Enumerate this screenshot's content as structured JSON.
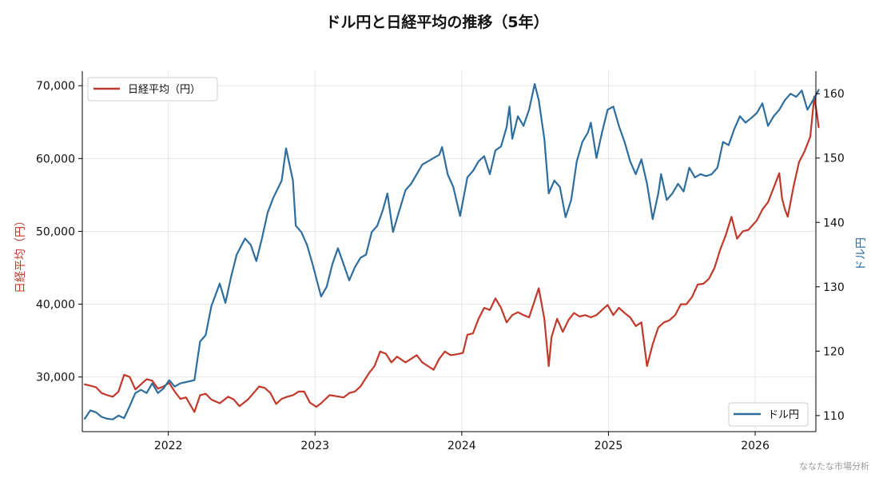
{
  "chart_data": {
    "type": "line",
    "title": "ドル円と日経平均の推移（5年）",
    "xlabel": "",
    "x_ticks": [
      "2022",
      "2023",
      "2024",
      "2025",
      "2026"
    ],
    "x_range": [
      "2021-06",
      "2026-06"
    ],
    "grid": true,
    "left_axis": {
      "label": "日経平均（円）",
      "ylim": [
        22500,
        72000
      ],
      "ticks": [
        30000,
        40000,
        50000,
        60000,
        70000
      ],
      "tick_labels": [
        "30,000",
        "40,000",
        "50,000",
        "60,000",
        "70,000"
      ],
      "color": "#c0392b"
    },
    "right_axis": {
      "label": "ドル円",
      "ylim": [
        107.5,
        163.5
      ],
      "ticks": [
        110,
        120,
        130,
        140,
        150,
        160
      ],
      "tick_labels": [
        "110",
        "120",
        "130",
        "140",
        "150",
        "160"
      ],
      "color": "#2e6e9e"
    },
    "legend_left": {
      "label": "日経平均（円）",
      "position": "top-left"
    },
    "legend_right": {
      "label": "ドル円",
      "position": "bottom-right"
    },
    "series": [
      {
        "name": "日経平均（円）",
        "axis": "left",
        "color": "#c0392b",
        "points": [
          [
            "2021-06-07",
            29000
          ],
          [
            "2021-06-21",
            28800
          ],
          [
            "2021-07-05",
            28600
          ],
          [
            "2021-07-19",
            27800
          ],
          [
            "2021-08-02",
            27500
          ],
          [
            "2021-08-16",
            27300
          ],
          [
            "2021-08-30",
            28000
          ],
          [
            "2021-09-13",
            30300
          ],
          [
            "2021-09-27",
            30000
          ],
          [
            "2021-10-11",
            28300
          ],
          [
            "2021-10-25",
            29000
          ],
          [
            "2021-11-08",
            29700
          ],
          [
            "2021-11-22",
            29500
          ],
          [
            "2021-12-06",
            28400
          ],
          [
            "2021-12-20",
            28700
          ],
          [
            "2022-01-03",
            29200
          ],
          [
            "2022-01-17",
            28000
          ],
          [
            "2022-01-31",
            27000
          ],
          [
            "2022-02-14",
            27200
          ],
          [
            "2022-03-07",
            25200
          ],
          [
            "2022-03-21",
            27500
          ],
          [
            "2022-04-04",
            27700
          ],
          [
            "2022-04-18",
            26900
          ],
          [
            "2022-05-09",
            26400
          ],
          [
            "2022-05-30",
            27300
          ],
          [
            "2022-06-13",
            26900
          ],
          [
            "2022-06-27",
            26000
          ],
          [
            "2022-07-18",
            26900
          ],
          [
            "2022-08-01",
            27800
          ],
          [
            "2022-08-15",
            28700
          ],
          [
            "2022-08-29",
            28500
          ],
          [
            "2022-09-12",
            27800
          ],
          [
            "2022-09-26",
            26300
          ],
          [
            "2022-10-10",
            27000
          ],
          [
            "2022-10-24",
            27300
          ],
          [
            "2022-11-07",
            27500
          ],
          [
            "2022-11-21",
            28000
          ],
          [
            "2022-12-05",
            28000
          ],
          [
            "2022-12-19",
            26500
          ],
          [
            "2023-01-04",
            25900
          ],
          [
            "2023-01-16",
            26400
          ],
          [
            "2023-02-06",
            27500
          ],
          [
            "2023-02-20",
            27400
          ],
          [
            "2023-03-13",
            27200
          ],
          [
            "2023-03-27",
            27800
          ],
          [
            "2023-04-10",
            28000
          ],
          [
            "2023-04-24",
            28700
          ],
          [
            "2023-05-15",
            30500
          ],
          [
            "2023-05-29",
            31500
          ],
          [
            "2023-06-12",
            33500
          ],
          [
            "2023-06-26",
            33200
          ],
          [
            "2023-07-10",
            32000
          ],
          [
            "2023-07-24",
            32800
          ],
          [
            "2023-08-14",
            32000
          ],
          [
            "2023-08-28",
            32500
          ],
          [
            "2023-09-11",
            33000
          ],
          [
            "2023-09-25",
            32000
          ],
          [
            "2023-10-09",
            31500
          ],
          [
            "2023-10-23",
            31000
          ],
          [
            "2023-11-06",
            32500
          ],
          [
            "2023-11-20",
            33500
          ],
          [
            "2023-12-04",
            33000
          ],
          [
            "2023-12-18",
            33100
          ],
          [
            "2024-01-04",
            33300
          ],
          [
            "2024-01-15",
            35800
          ],
          [
            "2024-01-29",
            36000
          ],
          [
            "2024-02-12",
            38000
          ],
          [
            "2024-02-26",
            39500
          ],
          [
            "2024-03-11",
            39200
          ],
          [
            "2024-03-25",
            40800
          ],
          [
            "2024-04-08",
            39500
          ],
          [
            "2024-04-22",
            37500
          ],
          [
            "2024-05-06",
            38500
          ],
          [
            "2024-05-20",
            38900
          ],
          [
            "2024-06-03",
            38500
          ],
          [
            "2024-06-17",
            38200
          ],
          [
            "2024-07-01",
            40500
          ],
          [
            "2024-07-11",
            42200
          ],
          [
            "2024-07-25",
            38000
          ],
          [
            "2024-08-05",
            31500
          ],
          [
            "2024-08-12",
            35500
          ],
          [
            "2024-08-26",
            38000
          ],
          [
            "2024-09-09",
            36200
          ],
          [
            "2024-09-23",
            37800
          ],
          [
            "2024-10-07",
            38800
          ],
          [
            "2024-10-21",
            38300
          ],
          [
            "2024-11-04",
            38500
          ],
          [
            "2024-11-18",
            38200
          ],
          [
            "2024-12-02",
            38500
          ],
          [
            "2024-12-16",
            39200
          ],
          [
            "2024-12-30",
            39900
          ],
          [
            "2025-01-13",
            38500
          ],
          [
            "2025-01-27",
            39500
          ],
          [
            "2025-02-10",
            38800
          ],
          [
            "2025-02-24",
            38200
          ],
          [
            "2025-03-10",
            37000
          ],
          [
            "2025-03-24",
            37500
          ],
          [
            "2025-04-07",
            31500
          ],
          [
            "2025-04-21",
            34500
          ],
          [
            "2025-05-05",
            36800
          ],
          [
            "2025-05-19",
            37500
          ],
          [
            "2025-06-02",
            37800
          ],
          [
            "2025-06-16",
            38500
          ],
          [
            "2025-06-30",
            40000
          ],
          [
            "2025-07-14",
            40000
          ],
          [
            "2025-07-28",
            41000
          ],
          [
            "2025-08-11",
            42700
          ],
          [
            "2025-08-25",
            42800
          ],
          [
            "2025-09-08",
            43500
          ],
          [
            "2025-09-22",
            45000
          ],
          [
            "2025-10-06",
            47500
          ],
          [
            "2025-10-20",
            49500
          ],
          [
            "2025-11-03",
            52000
          ],
          [
            "2025-11-17",
            49000
          ],
          [
            "2025-12-01",
            50000
          ],
          [
            "2025-12-15",
            50200
          ],
          [
            "2026-01-05",
            51500
          ],
          [
            "2026-01-19",
            53000
          ],
          [
            "2026-02-02",
            54000
          ],
          [
            "2026-02-16",
            56000
          ],
          [
            "2026-03-02",
            58000
          ],
          [
            "2026-03-09",
            54500
          ],
          [
            "2026-03-16",
            53000
          ],
          [
            "2026-03-23",
            52000
          ],
          [
            "2026-04-06",
            56000
          ],
          [
            "2026-04-20",
            59500
          ],
          [
            "2026-05-04",
            61000
          ],
          [
            "2026-05-18",
            63000
          ],
          [
            "2026-05-28",
            68500
          ],
          [
            "2026-06-04",
            66000
          ],
          [
            "2026-06-08",
            64300
          ]
        ]
      },
      {
        "name": "ドル円",
        "axis": "right",
        "color": "#2e6e9e",
        "points": [
          [
            "2021-06-07",
            109.5
          ],
          [
            "2021-06-21",
            110.8
          ],
          [
            "2021-07-05",
            110.5
          ],
          [
            "2021-07-19",
            109.8
          ],
          [
            "2021-08-02",
            109.5
          ],
          [
            "2021-08-16",
            109.4
          ],
          [
            "2021-08-30",
            110.0
          ],
          [
            "2021-09-13",
            109.6
          ],
          [
            "2021-09-27",
            111.5
          ],
          [
            "2021-10-11",
            113.5
          ],
          [
            "2021-10-25",
            114.0
          ],
          [
            "2021-11-08",
            113.5
          ],
          [
            "2021-11-22",
            115.0
          ],
          [
            "2021-12-06",
            113.5
          ],
          [
            "2021-12-20",
            114.2
          ],
          [
            "2022-01-03",
            115.5
          ],
          [
            "2022-01-17",
            114.5
          ],
          [
            "2022-01-31",
            115.0
          ],
          [
            "2022-02-14",
            115.2
          ],
          [
            "2022-03-07",
            115.5
          ],
          [
            "2022-03-21",
            121.5
          ],
          [
            "2022-04-04",
            122.5
          ],
          [
            "2022-04-18",
            127.0
          ],
          [
            "2022-05-09",
            130.5
          ],
          [
            "2022-05-23",
            127.5
          ],
          [
            "2022-06-06",
            131.5
          ],
          [
            "2022-06-20",
            135.0
          ],
          [
            "2022-07-11",
            137.5
          ],
          [
            "2022-07-25",
            136.5
          ],
          [
            "2022-08-08",
            134.0
          ],
          [
            "2022-08-22",
            137.5
          ],
          [
            "2022-09-05",
            141.5
          ],
          [
            "2022-09-19",
            143.8
          ],
          [
            "2022-10-10",
            146.5
          ],
          [
            "2022-10-21",
            151.5
          ],
          [
            "2022-11-07",
            146.5
          ],
          [
            "2022-11-14",
            139.5
          ],
          [
            "2022-11-28",
            138.5
          ],
          [
            "2022-12-12",
            136.5
          ],
          [
            "2022-12-26",
            133.5
          ],
          [
            "2023-01-16",
            128.5
          ],
          [
            "2023-01-30",
            130.0
          ],
          [
            "2023-02-13",
            133.5
          ],
          [
            "2023-02-27",
            136.0
          ],
          [
            "2023-03-13",
            133.5
          ],
          [
            "2023-03-27",
            131.0
          ],
          [
            "2023-04-10",
            133.0
          ],
          [
            "2023-04-24",
            134.5
          ],
          [
            "2023-05-08",
            135.0
          ],
          [
            "2023-05-22",
            138.5
          ],
          [
            "2023-06-05",
            139.5
          ],
          [
            "2023-06-19",
            142.0
          ],
          [
            "2023-06-30",
            144.5
          ],
          [
            "2023-07-14",
            138.5
          ],
          [
            "2023-07-28",
            141.5
          ],
          [
            "2023-08-14",
            145.0
          ],
          [
            "2023-08-28",
            146.0
          ],
          [
            "2023-09-11",
            147.5
          ],
          [
            "2023-09-25",
            149.0
          ],
          [
            "2023-10-09",
            149.5
          ],
          [
            "2023-10-23",
            150.0
          ],
          [
            "2023-11-06",
            150.5
          ],
          [
            "2023-11-13",
            151.7
          ],
          [
            "2023-11-27",
            147.5
          ],
          [
            "2023-12-11",
            145.5
          ],
          [
            "2023-12-28",
            141.0
          ],
          [
            "2024-01-15",
            147.0
          ],
          [
            "2024-01-29",
            148.0
          ],
          [
            "2024-02-12",
            149.5
          ],
          [
            "2024-02-26",
            150.3
          ],
          [
            "2024-03-11",
            147.5
          ],
          [
            "2024-03-25",
            151.2
          ],
          [
            "2024-04-08",
            151.8
          ],
          [
            "2024-04-22",
            154.8
          ],
          [
            "2024-04-29",
            158.0
          ],
          [
            "2024-05-06",
            153.0
          ],
          [
            "2024-05-20",
            156.5
          ],
          [
            "2024-06-03",
            155.0
          ],
          [
            "2024-06-17",
            157.5
          ],
          [
            "2024-07-01",
            161.5
          ],
          [
            "2024-07-11",
            159.0
          ],
          [
            "2024-07-25",
            153.0
          ],
          [
            "2024-08-05",
            144.5
          ],
          [
            "2024-08-19",
            146.5
          ],
          [
            "2024-09-02",
            145.5
          ],
          [
            "2024-09-16",
            140.8
          ],
          [
            "2024-09-30",
            143.5
          ],
          [
            "2024-10-14",
            149.5
          ],
          [
            "2024-10-28",
            152.5
          ],
          [
            "2024-11-11",
            154.0
          ],
          [
            "2024-11-18",
            155.5
          ],
          [
            "2024-12-02",
            150.0
          ],
          [
            "2024-12-16",
            154.0
          ],
          [
            "2024-12-30",
            157.5
          ],
          [
            "2025-01-13",
            158.0
          ],
          [
            "2025-01-27",
            155.0
          ],
          [
            "2025-02-10",
            152.5
          ],
          [
            "2025-02-24",
            149.5
          ],
          [
            "2025-03-10",
            147.5
          ],
          [
            "2025-03-24",
            149.8
          ],
          [
            "2025-04-07",
            146.0
          ],
          [
            "2025-04-21",
            140.5
          ],
          [
            "2025-05-05",
            144.5
          ],
          [
            "2025-05-12",
            147.5
          ],
          [
            "2025-05-26",
            143.5
          ],
          [
            "2025-06-09",
            144.5
          ],
          [
            "2025-06-23",
            146.0
          ],
          [
            "2025-07-07",
            144.8
          ],
          [
            "2025-07-21",
            148.5
          ],
          [
            "2025-08-04",
            147.0
          ],
          [
            "2025-08-18",
            147.5
          ],
          [
            "2025-09-01",
            147.2
          ],
          [
            "2025-09-15",
            147.5
          ],
          [
            "2025-09-29",
            148.5
          ],
          [
            "2025-10-13",
            152.5
          ],
          [
            "2025-10-27",
            152.0
          ],
          [
            "2025-11-10",
            154.5
          ],
          [
            "2025-11-24",
            156.5
          ],
          [
            "2025-12-08",
            155.5
          ],
          [
            "2025-12-22",
            156.2
          ],
          [
            "2026-01-05",
            157.0
          ],
          [
            "2026-01-19",
            158.5
          ],
          [
            "2026-02-02",
            155.0
          ],
          [
            "2026-02-16",
            156.5
          ],
          [
            "2026-03-02",
            157.5
          ],
          [
            "2026-03-16",
            159.0
          ],
          [
            "2026-03-30",
            160.0
          ],
          [
            "2026-04-13",
            159.5
          ],
          [
            "2026-04-27",
            160.5
          ],
          [
            "2026-05-11",
            157.5
          ],
          [
            "2026-05-25",
            159.0
          ],
          [
            "2026-06-08",
            160.6
          ]
        ]
      }
    ]
  },
  "watermark": "ななたな市場分析"
}
